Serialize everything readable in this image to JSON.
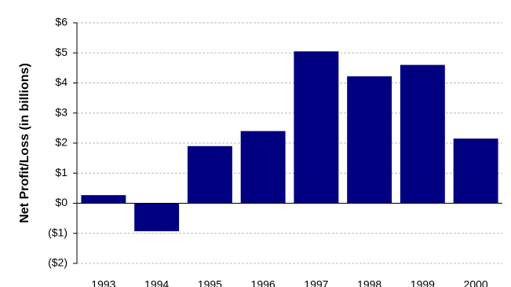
{
  "chart_data": {
    "type": "bar",
    "y_axis_label": "Net Profit/Loss (in billions)",
    "categories": [
      "1993",
      "1994",
      "1995",
      "1996",
      "1997",
      "1998",
      "1999",
      "2000"
    ],
    "values": [
      0.27,
      -0.93,
      1.9,
      2.4,
      5.05,
      4.22,
      4.6,
      2.15
    ],
    "color": "#000080",
    "ylim": [
      -2,
      6
    ],
    "yticks": [
      {
        "value": -2,
        "label": "($2)"
      },
      {
        "value": -1,
        "label": "($1)"
      },
      {
        "value": 0,
        "label": "$0"
      },
      {
        "value": 1,
        "label": "$1"
      },
      {
        "value": 2,
        "label": "$2"
      },
      {
        "value": 3,
        "label": "$3"
      },
      {
        "value": 4,
        "label": "$4"
      },
      {
        "value": 5,
        "label": "$5"
      },
      {
        "value": 6,
        "label": "$6"
      }
    ],
    "grid": true
  }
}
